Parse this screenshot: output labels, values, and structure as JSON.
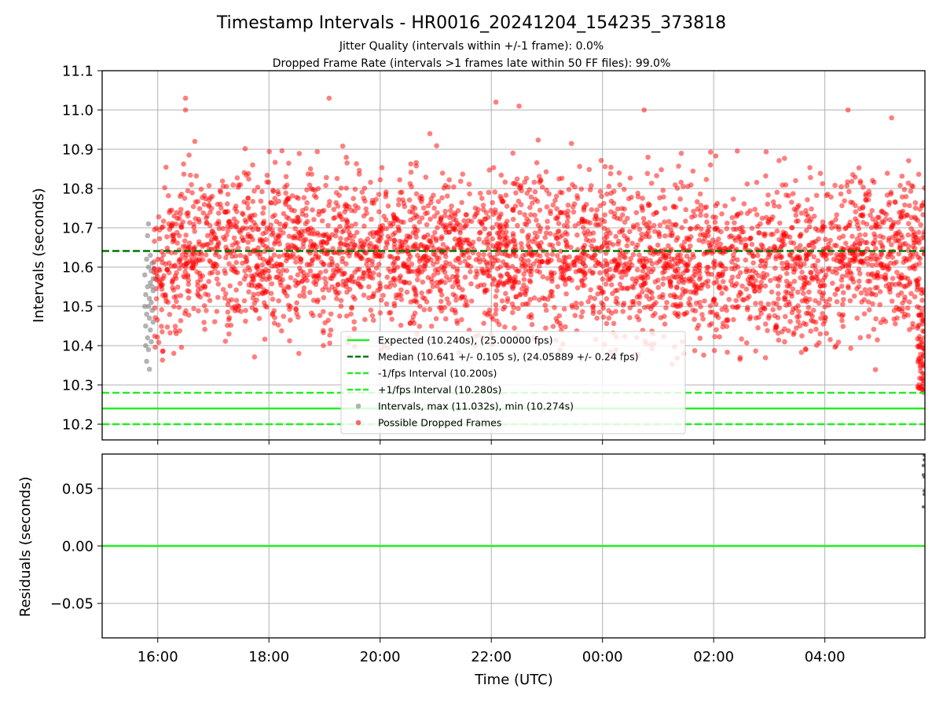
{
  "chart_data": [
    {
      "type": "scatter",
      "title": "Timestamp Intervals - HR0016_20241204_154235_373818",
      "subtitle_1": "Jitter Quality (intervals within +/-1 frame): 0.0%",
      "subtitle_2": "Dropped Frame Rate (intervals >1 frames late within 50 FF files): 99.0%",
      "ylabel": "Intervals (seconds)",
      "xlim": [
        "15:00",
        "05:48"
      ],
      "ylim": [
        10.16,
        11.1
      ],
      "yticks": [
        "10.2",
        "10.3",
        "10.4",
        "10.5",
        "10.6",
        "10.7",
        "10.8",
        "10.9",
        "11.0",
        "11.1"
      ],
      "grid": true,
      "legend_position": "lower center",
      "reference_lines": [
        {
          "label": "Expected (10.240s), (25.00000 fps)",
          "y": 10.24,
          "style": "solid",
          "color": "#22ee22"
        },
        {
          "label": "Median (10.641 +/- 0.105 s), (24.05889 +/- 0.24 fps)",
          "y": 10.641,
          "style": "dashed",
          "color": "#007700"
        },
        {
          "label": "-1/fps Interval (10.200s)",
          "y": 10.2,
          "style": "dashed",
          "color": "#22ee22"
        },
        {
          "label": "+1/fps Interval (10.280s)",
          "y": 10.28,
          "style": "dashed",
          "color": "#22ee22"
        }
      ],
      "series": [
        {
          "name": "Intervals, max (11.032s), min (10.274s)",
          "color": "#808080",
          "x": [
            "15:46",
            "15:46",
            "15:47",
            "15:47",
            "15:47",
            "15:48",
            "15:48",
            "15:48",
            "15:49",
            "15:49",
            "15:49",
            "15:50",
            "15:50",
            "15:50",
            "15:50",
            "15:51",
            "15:51",
            "15:51",
            "15:52",
            "15:52",
            "15:52",
            "15:53",
            "15:53",
            "15:53",
            "15:54",
            "15:54",
            "15:54",
            "15:55",
            "15:55",
            "15:55"
          ],
          "y": [
            10.5,
            10.58,
            10.45,
            10.4,
            10.53,
            10.62,
            10.36,
            10.48,
            10.55,
            10.68,
            10.42,
            10.5,
            10.71,
            10.39,
            10.6,
            10.34,
            10.52,
            10.47,
            10.63,
            10.56,
            10.44,
            10.51,
            10.59,
            10.41,
            10.49,
            10.55,
            10.61,
            10.46,
            10.54,
            10.57
          ]
        },
        {
          "name": "Possible Dropped Frames",
          "color": "#ff0000",
          "x": [
            "16:30",
            "16:30",
            "16:40",
            "19:05",
            "22:05",
            "22:30",
            "00:45",
            "04:25",
            "05:12"
          ],
          "y": [
            11.03,
            11.0,
            10.92,
            11.03,
            11.02,
            11.01,
            11.0,
            11.0,
            10.98
          ],
          "cloud": {
            "x_range": [
              "15:56",
              "05:48"
            ],
            "median": 10.641,
            "std": 0.105
          }
        }
      ]
    },
    {
      "type": "scatter",
      "xlabel": "Time (UTC)",
      "ylabel": "Residuals (seconds)",
      "xticks": [
        "16:00",
        "18:00",
        "20:00",
        "22:00",
        "00:00",
        "02:00",
        "04:00"
      ],
      "yticks": [
        "−0.05",
        "0.00",
        "0.05"
      ],
      "ylim": [
        -0.08,
        0.08
      ],
      "grid": true,
      "reference_lines": [
        {
          "y": 0,
          "style": "solid",
          "color": "#22ee22"
        }
      ],
      "series": [
        {
          "color": "#707070",
          "x": [
            "05:47",
            "05:47",
            "05:47",
            "05:48",
            "05:48",
            "05:48",
            "05:48",
            "05:48",
            "05:48"
          ],
          "y": [
            0.034,
            0.062,
            0.07,
            0.048,
            0.045,
            0.075,
            0.079,
            0.07,
            0.06
          ]
        }
      ]
    }
  ]
}
